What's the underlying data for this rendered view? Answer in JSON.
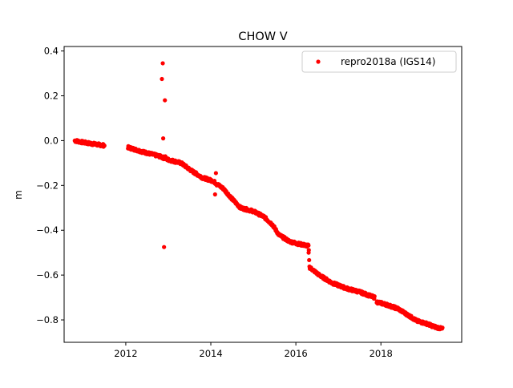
{
  "chart_data": {
    "type": "scatter",
    "title": "CHOW V",
    "xlabel": "",
    "ylabel": "m",
    "xlim": [
      2010.55,
      2019.9
    ],
    "ylim": [
      -0.9,
      0.42
    ],
    "xticks": [
      2012,
      2014,
      2016,
      2018
    ],
    "xtick_labels": [
      "2012",
      "2014",
      "2016",
      "2018"
    ],
    "yticks": [
      -0.8,
      -0.6,
      -0.4,
      -0.2,
      0.0,
      0.2,
      0.4
    ],
    "ytick_labels": [
      "−0.8",
      "−0.6",
      "−0.4",
      "−0.2",
      "0.0",
      "0.2",
      "0.4"
    ],
    "grid": false,
    "legend": {
      "position": "top-right",
      "entries": [
        "repro2018a (IGS14)"
      ]
    },
    "series": [
      {
        "name": "repro2018a (IGS14)",
        "color": "#ff0000",
        "marker": "circle",
        "trend": [
          [
            2010.8,
            0.0
          ],
          [
            2011.0,
            -0.008
          ],
          [
            2011.25,
            -0.015
          ],
          [
            2011.5,
            -0.022
          ],
          [
            2012.05,
            -0.03
          ],
          [
            2012.4,
            -0.05
          ],
          [
            2012.8,
            -0.07
          ],
          [
            2013.0,
            -0.085
          ],
          [
            2013.3,
            -0.1
          ],
          [
            2013.55,
            -0.135
          ],
          [
            2013.8,
            -0.165
          ],
          [
            2014.05,
            -0.18
          ],
          [
            2014.3,
            -0.215
          ],
          [
            2014.5,
            -0.26
          ],
          [
            2014.7,
            -0.3
          ],
          [
            2015.0,
            -0.315
          ],
          [
            2015.25,
            -0.34
          ],
          [
            2015.45,
            -0.375
          ],
          [
            2015.6,
            -0.42
          ],
          [
            2015.85,
            -0.45
          ],
          [
            2016.05,
            -0.46
          ],
          [
            2016.3,
            -0.47
          ],
          [
            2016.32,
            -0.565
          ],
          [
            2016.55,
            -0.6
          ],
          [
            2016.85,
            -0.635
          ],
          [
            2017.2,
            -0.66
          ],
          [
            2017.5,
            -0.675
          ],
          [
            2017.85,
            -0.7
          ],
          [
            2017.9,
            -0.72
          ],
          [
            2018.1,
            -0.73
          ],
          [
            2018.4,
            -0.75
          ],
          [
            2018.65,
            -0.78
          ],
          [
            2018.85,
            -0.805
          ],
          [
            2019.05,
            -0.815
          ],
          [
            2019.25,
            -0.83
          ],
          [
            2019.45,
            -0.84
          ]
        ],
        "gaps": [
          [
            2011.5,
            2012.05
          ],
          [
            2017.85,
            2017.9
          ]
        ],
        "outliers": [
          [
            2012.87,
            0.345
          ],
          [
            2012.85,
            0.275
          ],
          [
            2012.92,
            0.18
          ],
          [
            2012.88,
            0.01
          ],
          [
            2012.9,
            -0.475
          ],
          [
            2014.12,
            -0.145
          ],
          [
            2014.1,
            -0.24
          ],
          [
            2014.14,
            -0.2
          ],
          [
            2012.93,
            -0.07
          ],
          [
            2016.3,
            -0.5
          ]
        ]
      }
    ]
  }
}
